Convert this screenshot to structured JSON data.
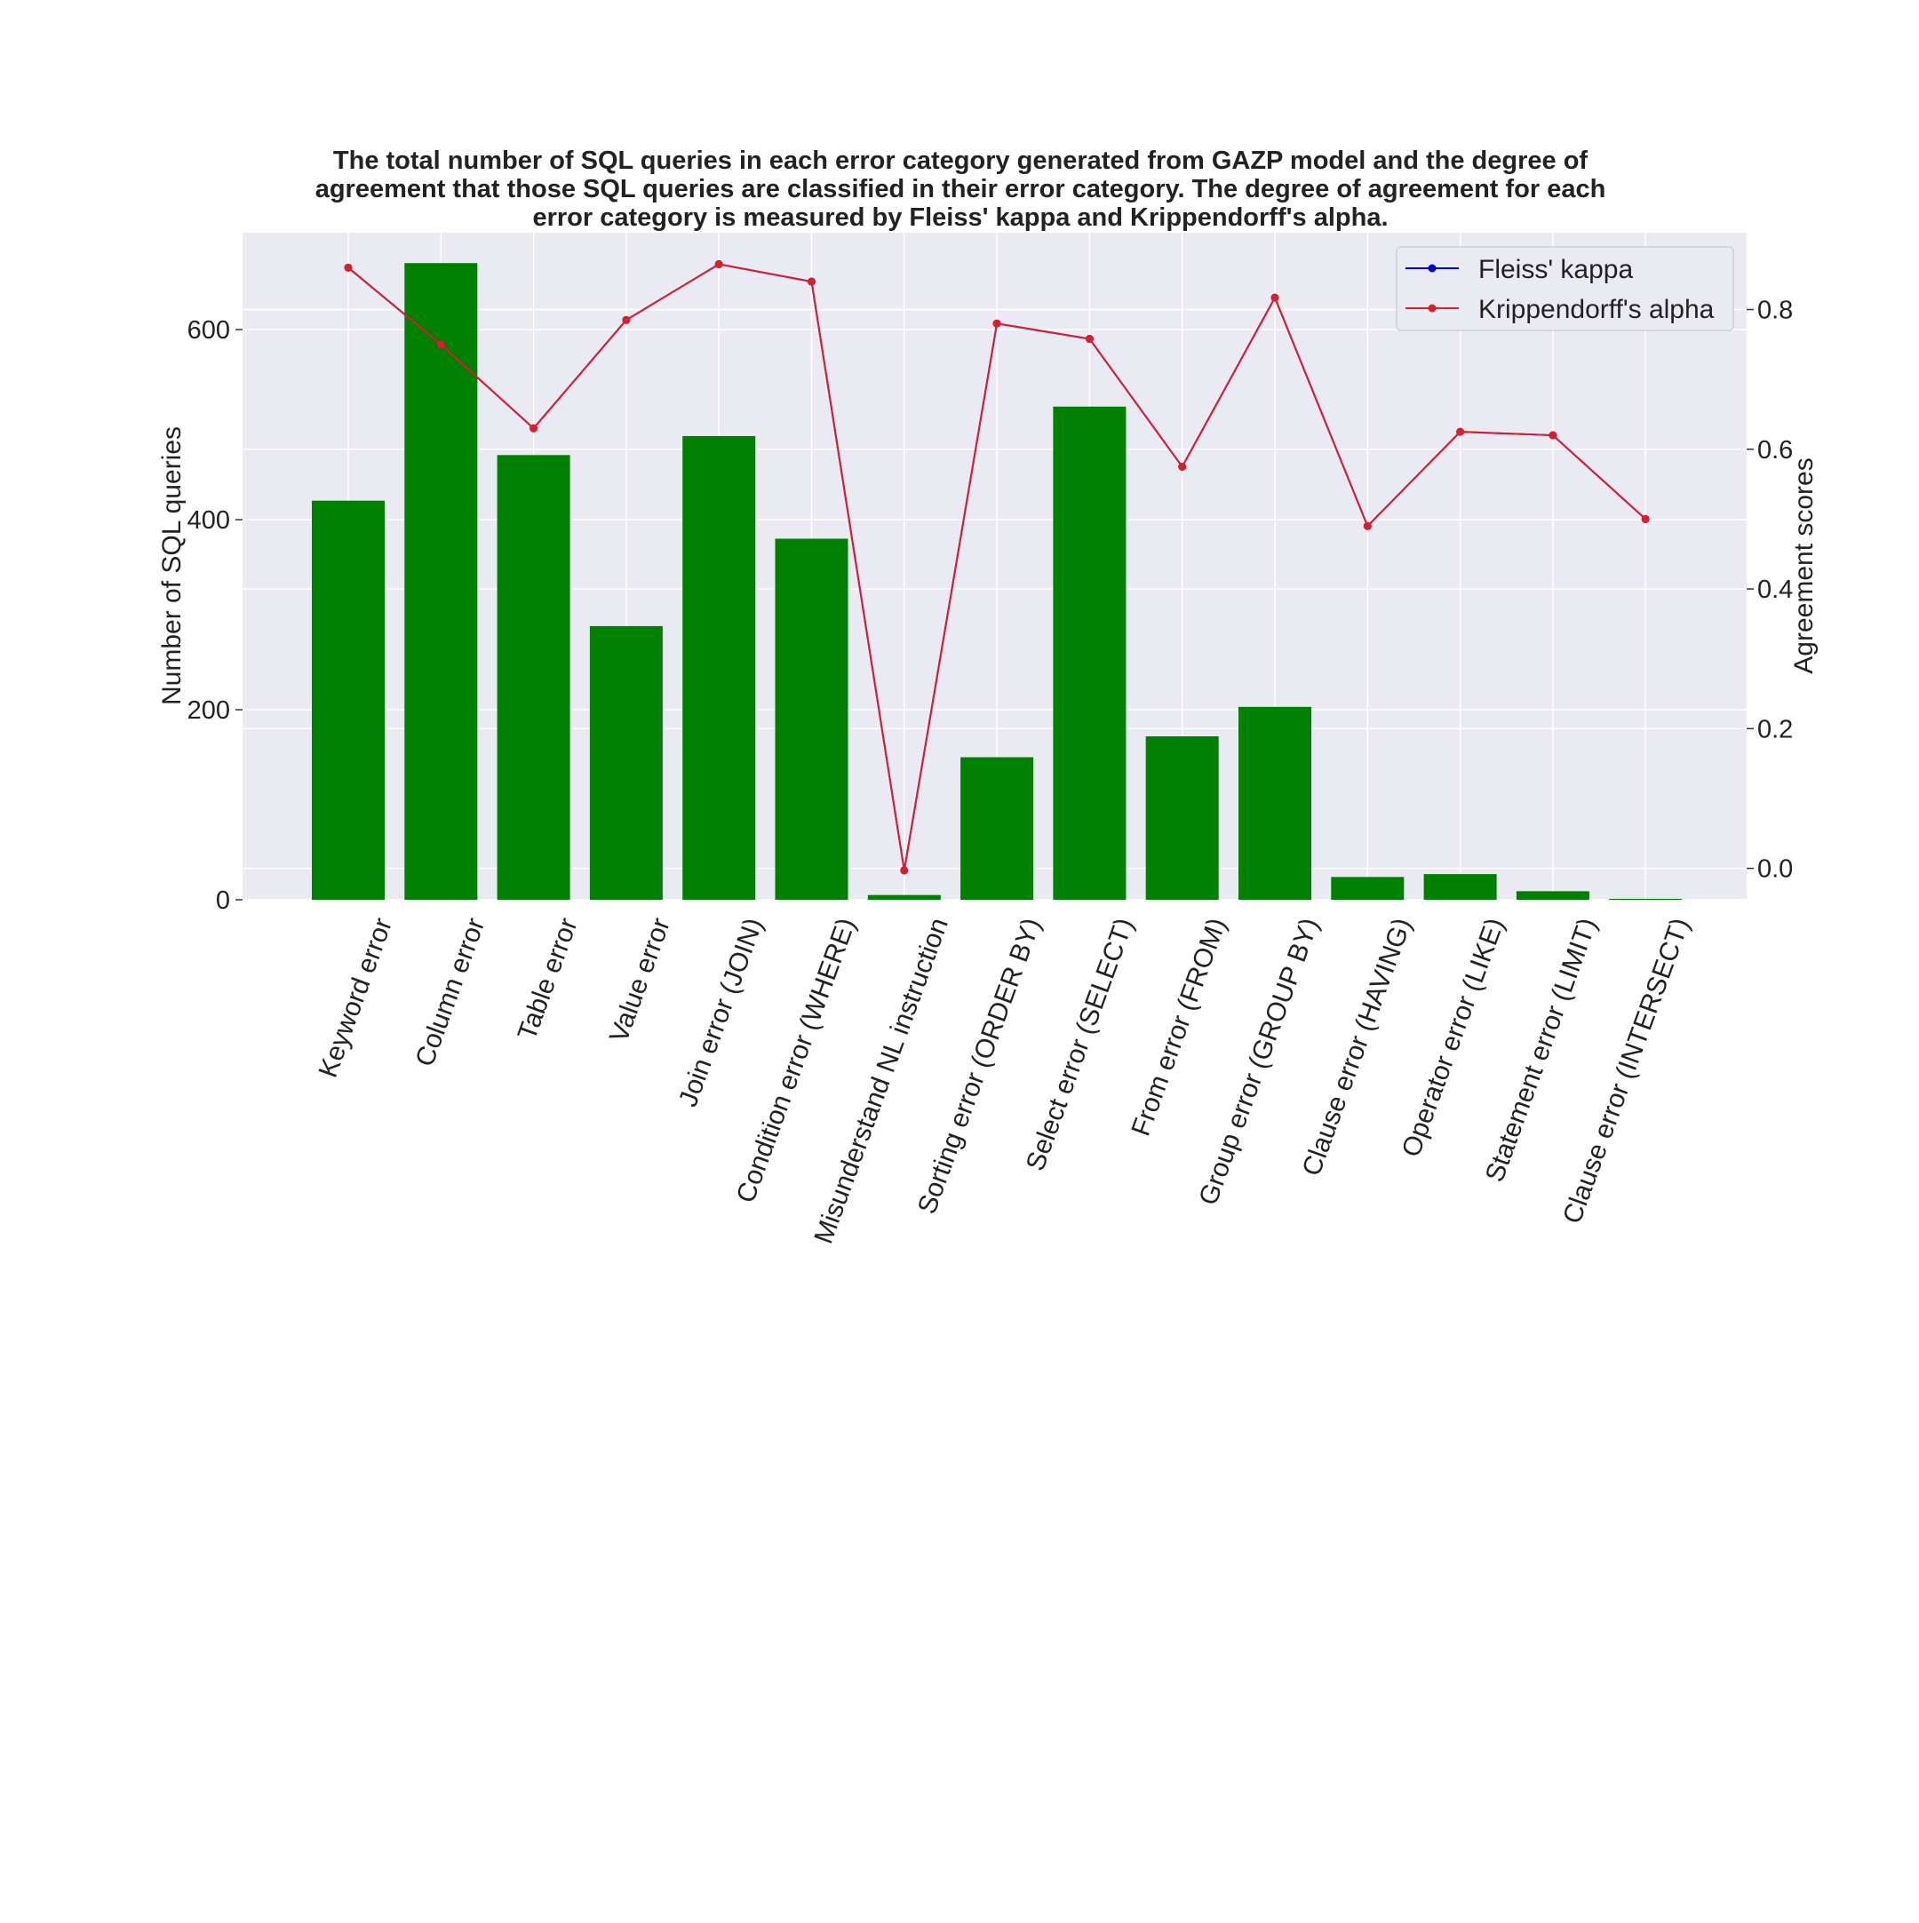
{
  "chart_data": {
    "type": "bar",
    "title": [
      "The total number of SQL queries in each error category generated from GAZP model and the degree of",
      "agreement that those SQL queries are classified in their error category. The degree of agreement for each",
      "error category is measured by Fleiss' kappa and Krippendorff's alpha."
    ],
    "ylabel": "Number of SQL queries",
    "y2label": "Agreement scores",
    "ylim": [
      0,
      702
    ],
    "y2lim": [
      -0.045,
      0.91
    ],
    "yticks": [
      "0",
      "200",
      "400",
      "600"
    ],
    "y2ticks": [
      "0.0",
      "0.2",
      "0.4",
      "0.6",
      "0.8"
    ],
    "grid": true,
    "legend_position": "top-right",
    "bar_color": "#008000",
    "categories": [
      "Keyword error",
      "Column error",
      "Table error",
      "Value error",
      "Join error (JOIN)",
      "Condition error (WHERE)",
      "Misunderstand NL instruction",
      "Sorting error (ORDER BY)",
      "Select error (SELECT)",
      "From error (FROM)",
      "Group error (GROUP BY)",
      "Clause error (HAVING)",
      "Operator error (LIKE)",
      "Statement error (LIMIT)",
      "Clause error (INTERSECT)"
    ],
    "values": [
      420,
      670,
      468,
      288,
      488,
      380,
      5,
      150,
      519,
      172,
      203,
      24,
      27,
      9,
      1
    ],
    "series": [
      {
        "name": "Fleiss' kappa",
        "color": "#0000cc",
        "values": [
          0.86,
          0.75,
          0.63,
          0.785,
          0.865,
          0.84,
          -0.003,
          0.78,
          0.758,
          0.575,
          0.817,
          0.49,
          0.625,
          0.62,
          0.5
        ]
      },
      {
        "name": "Krippendorff's alpha",
        "color": "#dc1e2a",
        "values": [
          0.86,
          0.75,
          0.63,
          0.785,
          0.865,
          0.84,
          -0.003,
          0.78,
          0.758,
          0.575,
          0.817,
          0.49,
          0.625,
          0.62,
          0.5
        ]
      }
    ]
  }
}
